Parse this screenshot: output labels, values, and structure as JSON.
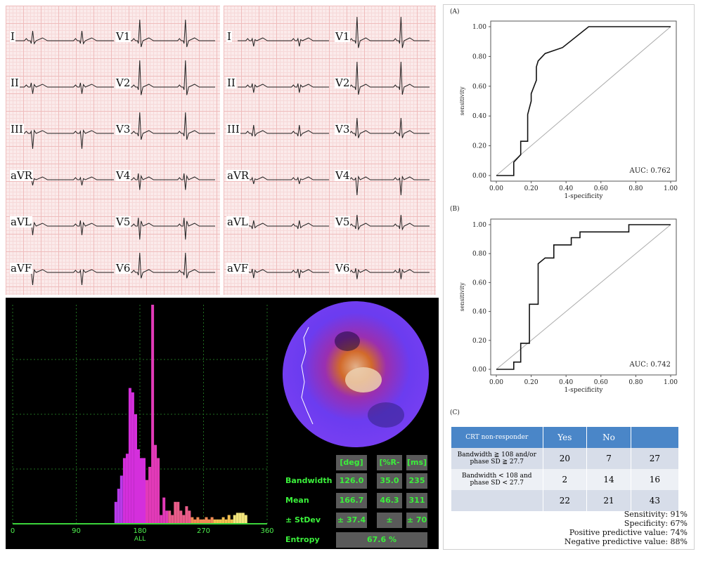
{
  "ecg": {
    "panel1": {
      "left_leads": [
        "I",
        "II",
        "III",
        "aVR",
        "aVL",
        "aVF"
      ],
      "right_leads": [
        "V1",
        "V2",
        "V3",
        "V4",
        "V5",
        "V6"
      ]
    },
    "panel2": {
      "left_leads": [
        "I",
        "II",
        "III",
        "aVR",
        "aVL",
        "aVF"
      ],
      "right_leads": [
        "V1",
        "V2",
        "V3",
        "V4",
        "V5",
        "V6"
      ]
    }
  },
  "spect": {
    "histogram": {
      "x_ticks": [
        "0",
        "90",
        "180",
        "270",
        "360"
      ],
      "x_label": "ALL",
      "bars": [
        0.0,
        0.0,
        0.0,
        0.0,
        0.0,
        0.0,
        0.0,
        0.0,
        0.0,
        0.0,
        0.0,
        0.0,
        0.0,
        0.0,
        0.0,
        0.0,
        0.0,
        0.0,
        0.0,
        0.0,
        0.0,
        0.0,
        0.0,
        0.0,
        0.0,
        0.0,
        0.0,
        0.0,
        0.0,
        0.0,
        0.0,
        0.0,
        0.0,
        0.0,
        0.0,
        0.0,
        0.1,
        0.16,
        0.22,
        0.3,
        0.32,
        0.62,
        0.6,
        0.5,
        0.34,
        0.3,
        0.3,
        0.2,
        0.26,
        1.0,
        0.36,
        0.3,
        0.04,
        0.12,
        0.06,
        0.06,
        0.04,
        0.1,
        0.1,
        0.06,
        0.04,
        0.08,
        0.06,
        0.03,
        0.02,
        0.03,
        0.02,
        0.02,
        0.03,
        0.02,
        0.03,
        0.02,
        0.02,
        0.02,
        0.03,
        0.02,
        0.04,
        0.02,
        0.04,
        0.05,
        0.05,
        0.05,
        0.04,
        0.0,
        0.0,
        0.0,
        0.0,
        0.0,
        0.0,
        0.0
      ],
      "bar_colors": [
        "#3d7ff0",
        "#5a6af5",
        "#7b55f5",
        "#9a45f0",
        "#b83aea",
        "#d42fdc",
        "#e23ab8",
        "#ea5d8a",
        "#f28a55",
        "#f3c050",
        "#f2e57c"
      ]
    },
    "table": {
      "columns": [
        "[deg]",
        "[%R-R]",
        "[ms]"
      ],
      "rows": [
        {
          "label": "Bandwidth",
          "values": [
            "126.0",
            "35.0",
            "235"
          ]
        },
        {
          "label": "Mean",
          "values": [
            "166.7",
            "46.3",
            "311"
          ]
        },
        {
          "label": "± StDev",
          "values": [
            "± 37.4",
            "± 10.4",
            "± 70"
          ]
        }
      ],
      "entropy_label": "Entropy",
      "entropy_value": "67.6 %"
    }
  },
  "chart_data": [
    {
      "type": "line",
      "panel": "(A)",
      "xlabel": "1-specificity",
      "ylabel": "sensitivity",
      "xlim": [
        0,
        1
      ],
      "ylim": [
        0,
        1
      ],
      "x_ticks": [
        "0.00",
        "0.20",
        "0.40",
        "0.60",
        "0.80",
        "1.00"
      ],
      "y_ticks": [
        "0.00",
        "0.20",
        "0.40",
        "0.60",
        "0.80",
        "1.00"
      ],
      "annotation": "AUC: 0.762",
      "x": [
        0.0,
        0.1,
        0.1,
        0.14,
        0.14,
        0.18,
        0.18,
        0.2,
        0.2,
        0.23,
        0.23,
        0.24,
        0.24,
        0.28,
        0.38,
        0.53,
        1.0
      ],
      "y": [
        0.0,
        0.0,
        0.09,
        0.14,
        0.23,
        0.23,
        0.41,
        0.5,
        0.55,
        0.64,
        0.73,
        0.77,
        0.77,
        0.82,
        0.86,
        1.0,
        1.0
      ],
      "diagonal": true
    },
    {
      "type": "line",
      "panel": "(B)",
      "xlabel": "1-specificity",
      "ylabel": "sensitivity",
      "xlim": [
        0,
        1
      ],
      "ylim": [
        0,
        1
      ],
      "x_ticks": [
        "0.00",
        "0.20",
        "0.40",
        "0.60",
        "0.80",
        "1.00"
      ],
      "y_ticks": [
        "0.00",
        "0.20",
        "0.40",
        "0.60",
        "0.80",
        "1.00"
      ],
      "annotation": "AUC: 0.742",
      "x": [
        0.0,
        0.1,
        0.1,
        0.14,
        0.14,
        0.19,
        0.19,
        0.24,
        0.24,
        0.28,
        0.33,
        0.33,
        0.43,
        0.43,
        0.48,
        0.48,
        0.76,
        0.76,
        0.86,
        1.0
      ],
      "y": [
        0.0,
        0.0,
        0.05,
        0.05,
        0.18,
        0.18,
        0.45,
        0.45,
        0.73,
        0.77,
        0.77,
        0.86,
        0.86,
        0.91,
        0.91,
        0.95,
        0.95,
        1.0,
        1.0,
        1.0
      ],
      "diagonal": true
    }
  ],
  "contingency": {
    "panel": "(C)",
    "header": [
      "CRT non-responder",
      "Yes",
      "No",
      ""
    ],
    "rows": [
      {
        "label": "Bandwidth ≧ 108 and/or phase SD ≧ 27.7",
        "cells": [
          "20",
          "7",
          "27"
        ]
      },
      {
        "label": "Bandwidth < 108 and phase SD < 27.7",
        "cells": [
          "2",
          "14",
          "16"
        ]
      },
      {
        "label": "",
        "cells": [
          "22",
          "21",
          "43"
        ]
      }
    ],
    "stats": [
      "Sensitivity: 91%",
      "Specificity: 67%",
      "Positive predictive value: 74%",
      "Negative predictive value: 88%"
    ]
  }
}
